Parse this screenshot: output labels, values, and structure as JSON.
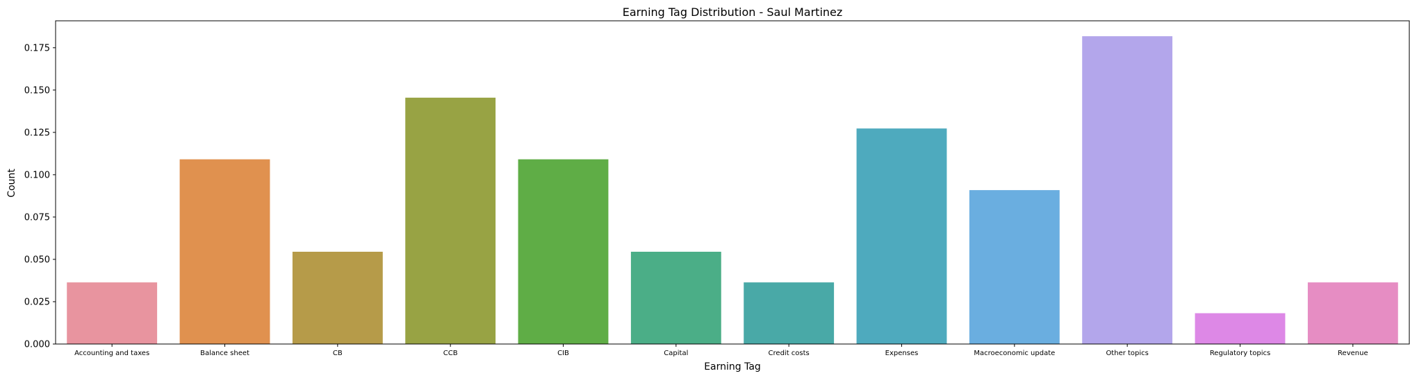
{
  "chart_data": {
    "type": "bar",
    "title": "Earning Tag Distribution - Saul Martinez",
    "xlabel": "Earning Tag",
    "ylabel": "Count",
    "categories": [
      "Accounting and taxes",
      "Balance sheet",
      "CB",
      "CCB",
      "CIB",
      "Capital",
      "Credit costs",
      "Expenses",
      "Macroeconomic update",
      "Other topics",
      "Regulatory topics",
      "Revenue"
    ],
    "values": [
      0.0364,
      0.1091,
      0.0545,
      0.1455,
      0.1091,
      0.0545,
      0.0364,
      0.1273,
      0.0909,
      0.1818,
      0.0182,
      0.0364
    ],
    "colors": [
      "#e8949f",
      "#e0914f",
      "#b69b49",
      "#98a344",
      "#5fad46",
      "#4bae87",
      "#49a9a7",
      "#4eaabe",
      "#6aaee0",
      "#b3a6eb",
      "#dd88e6",
      "#e68dc3"
    ],
    "ylim": [
      0,
      0.1909
    ],
    "yticks": [
      "0.000",
      "0.025",
      "0.050",
      "0.075",
      "0.100",
      "0.125",
      "0.150",
      "0.175"
    ],
    "grid": false,
    "legend": "none"
  }
}
